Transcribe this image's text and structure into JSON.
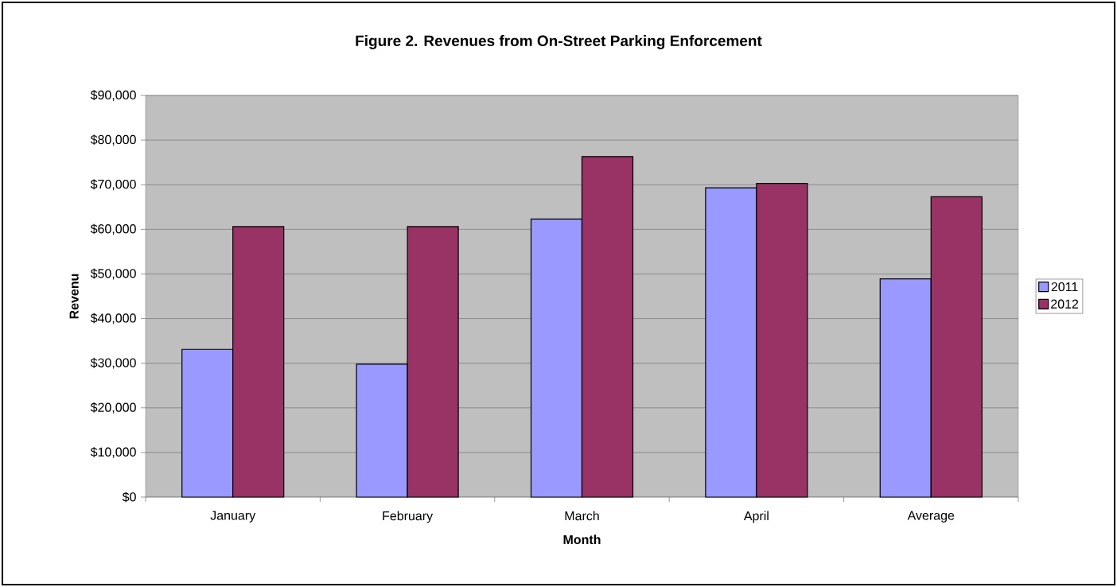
{
  "chart_data": {
    "type": "bar",
    "title": "Figure 2.  Revenues from On-Street Parking Enforcement",
    "xlabel": "Month",
    "ylabel": "Revenu",
    "categories": [
      "January",
      "February",
      "March",
      "April",
      "Average"
    ],
    "series": [
      {
        "name": "2011",
        "color": "#9999ff",
        "values": [
          33100,
          29800,
          62300,
          69300,
          48900
        ]
      },
      {
        "name": "2012",
        "color": "#993366",
        "values": [
          60600,
          60600,
          76300,
          70300,
          67300
        ]
      }
    ],
    "ylim": [
      0,
      90000
    ],
    "yticks": [
      {
        "value": 0,
        "label": "$0"
      },
      {
        "value": 10000,
        "label": "$10,000"
      },
      {
        "value": 20000,
        "label": "$20,000"
      },
      {
        "value": 30000,
        "label": "$30,000"
      },
      {
        "value": 40000,
        "label": "$40,000"
      },
      {
        "value": 50000,
        "label": "$50,000"
      },
      {
        "value": 60000,
        "label": "$60,000"
      },
      {
        "value": 70000,
        "label": "$70,000"
      },
      {
        "value": 80000,
        "label": "$80,000"
      },
      {
        "value": 90000,
        "label": "$90,000"
      }
    ],
    "grid": "y",
    "legend": "right"
  }
}
